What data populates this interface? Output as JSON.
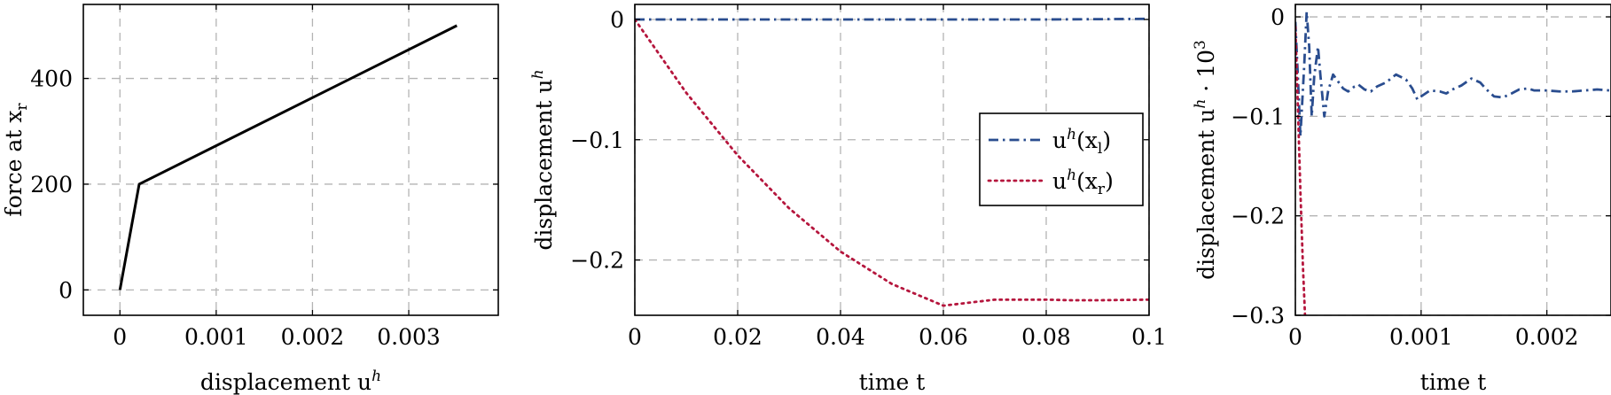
{
  "chart_data": [
    {
      "type": "line",
      "xlabel": "displacement u^h",
      "ylabel": "force at x_r",
      "xlim": [
        -0.00038,
        0.00393
      ],
      "ylim": [
        -48,
        540
      ],
      "xticks": [
        0,
        0.001,
        0.002,
        0.003
      ],
      "xtick_labels": [
        "0",
        "0.001",
        "0.002",
        "0.003"
      ],
      "yticks": [
        0,
        200,
        400
      ],
      "ytick_labels": [
        "0",
        "200",
        "400"
      ],
      "grid": true,
      "legend": "none",
      "series": [
        {
          "color": "#000000",
          "style": "solid",
          "x": [
            0,
            0.0002,
            0.0035
          ],
          "y": [
            0,
            200,
            500
          ]
        }
      ]
    },
    {
      "type": "line",
      "xlabel": "time t",
      "ylabel": "displacement u^h",
      "xlim": [
        0,
        0.1
      ],
      "ylim": [
        -0.246,
        0.0125
      ],
      "xticks": [
        0,
        0.02,
        0.04,
        0.06,
        0.08,
        0.1
      ],
      "xtick_labels": [
        "0",
        "0.02",
        "0.04",
        "0.06",
        "0.08",
        "0.1"
      ],
      "yticks": [
        0,
        -0.1,
        -0.2
      ],
      "ytick_labels": [
        "0",
        "−0.1",
        "−0.2"
      ],
      "grid": true,
      "legend": "center-right",
      "series": [
        {
          "name": "u^h(x_l)",
          "color": "#2a4d8f",
          "style": "dash-dot",
          "x": [
            0,
            0.02,
            0.04,
            0.06,
            0.08,
            0.1
          ],
          "y": [
            0,
            0,
            0,
            0,
            0,
            0.0005
          ]
        },
        {
          "name": "u^h(x_r)",
          "color": "#b5163d",
          "style": "dotted",
          "x": [
            0,
            0.01,
            0.02,
            0.03,
            0.04,
            0.05,
            0.06,
            0.07,
            0.08,
            0.085,
            0.09,
            0.1
          ],
          "y": [
            0,
            -0.061,
            -0.113,
            -0.157,
            -0.193,
            -0.22,
            -0.238,
            -0.233,
            -0.233,
            -0.2335,
            -0.2335,
            -0.233
          ]
        }
      ]
    },
    {
      "type": "line",
      "xlabel": "time t",
      "ylabel": "displacement u^h · 10^3",
      "xlim": [
        0,
        0.00251
      ],
      "ylim": [
        -0.3,
        0.0125
      ],
      "xticks": [
        0,
        0.001,
        0.002
      ],
      "xtick_labels": [
        "0",
        "0.001",
        "0.002"
      ],
      "yticks": [
        0,
        -0.1,
        -0.2,
        -0.3
      ],
      "ytick_labels": [
        "0",
        "−0.1",
        "−0.2",
        "−0.3"
      ],
      "grid": true,
      "legend": "none",
      "series": [
        {
          "color": "#2a4d8f",
          "style": "dash-dot",
          "x": [
            0,
            2e-05,
            4e-05,
            7e-05,
            9e-05,
            0.00011,
            0.00013,
            0.00015,
            0.00018,
            0.0002,
            0.00023,
            0.00026,
            0.0003,
            0.00034,
            0.00038,
            0.00042,
            0.00047,
            0.0005,
            0.00055,
            0.0006,
            0.00065,
            0.00072,
            0.0008,
            0.00088,
            0.00093,
            0.00097,
            0.001,
            0.00107,
            0.00115,
            0.0012,
            0.00125,
            0.00132,
            0.0014,
            0.00147,
            0.00152,
            0.00158,
            0.00165,
            0.00172,
            0.00178,
            0.00185,
            0.0019,
            0.002,
            0.0021,
            0.0022,
            0.0023,
            0.0024,
            0.0025
          ],
          "y": [
            -0.005,
            -0.06,
            -0.12,
            -0.05,
            0.005,
            -0.03,
            -0.1,
            -0.06,
            -0.03,
            -0.06,
            -0.1,
            -0.075,
            -0.058,
            -0.065,
            -0.072,
            -0.075,
            -0.07,
            -0.068,
            -0.073,
            -0.075,
            -0.07,
            -0.066,
            -0.058,
            -0.063,
            -0.072,
            -0.083,
            -0.08,
            -0.074,
            -0.075,
            -0.077,
            -0.073,
            -0.069,
            -0.062,
            -0.066,
            -0.073,
            -0.08,
            -0.081,
            -0.077,
            -0.073,
            -0.072,
            -0.074,
            -0.074,
            -0.075,
            -0.075,
            -0.074,
            -0.073,
            -0.074
          ]
        },
        {
          "color": "#b5163d",
          "style": "dotted",
          "x": [
            0,
            2e-05,
            4e-05,
            6e-05,
            8e-05
          ],
          "y": [
            -0.01,
            -0.09,
            -0.175,
            -0.25,
            -0.31
          ]
        }
      ]
    }
  ]
}
